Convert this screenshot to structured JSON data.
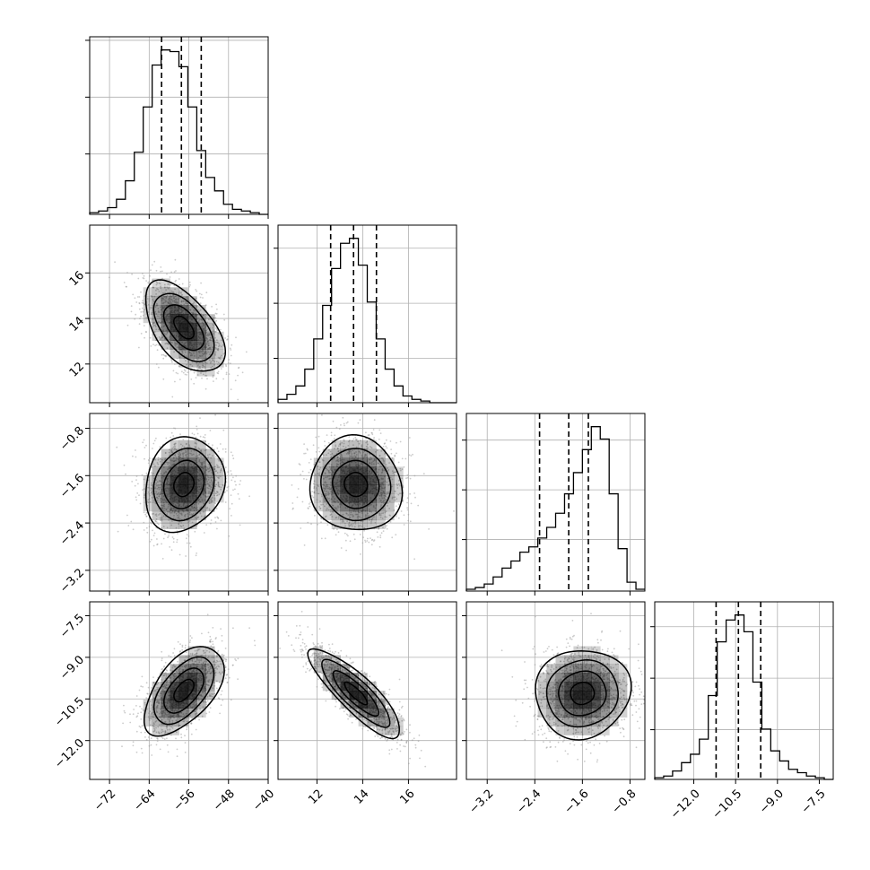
{
  "chart_data": {
    "type": "corner",
    "grid": true,
    "parameters": [
      {
        "mean": -57.5,
        "sd": 4.0,
        "quantiles": [
          -61.5,
          -57.5,
          -53.5
        ],
        "range": [
          -76,
          -40
        ],
        "ticks": [
          -72,
          -64,
          -56,
          -48,
          -40
        ],
        "tick_labels": [
          "−72",
          "−64",
          "−56",
          "−48",
          "−40"
        ]
      },
      {
        "mean": 13.6,
        "sd": 1.0,
        "quantiles": [
          12.6,
          13.6,
          14.6
        ],
        "range": [
          10.3,
          18.1
        ],
        "ticks": [
          12,
          14,
          16
        ],
        "tick_labels": [
          "12",
          "14",
          "16"
        ]
      },
      {
        "mean": -1.6,
        "sd": 0.4,
        "quantiles": [
          -2.32,
          -1.83,
          -1.5
        ],
        "range": [
          -3.55,
          -0.55
        ],
        "ticks": [
          -3.2,
          -2.4,
          -1.6,
          -0.8
        ],
        "tick_labels": [
          "−3.2",
          "−2.4",
          "−1.6",
          "−0.8"
        ]
      },
      {
        "mean": -10.4,
        "sd": 0.8,
        "quantiles": [
          -11.2,
          -10.4,
          -9.6
        ],
        "range": [
          -13.4,
          -7.0
        ],
        "ticks": [
          -12.0,
          -10.5,
          -9.0,
          -7.5
        ],
        "tick_labels": [
          "−12.0",
          "−10.5",
          "−9.0",
          "−7.5"
        ]
      }
    ],
    "histograms": [
      {
        "bin_start": -76,
        "bin_width": 1.8,
        "counts": [
          1,
          2,
          4,
          9,
          20,
          37,
          64,
          89,
          98,
          97,
          88,
          64,
          38,
          22,
          14,
          6,
          3,
          2,
          1,
          0
        ],
        "y_ticks": [
          0.34,
          0.66,
          0.98
        ]
      },
      {
        "bin_start": 10.3,
        "bin_width": 0.39,
        "counts": [
          2,
          5,
          10,
          20,
          38,
          58,
          80,
          95,
          98,
          82,
          60,
          38,
          20,
          10,
          4,
          2,
          1,
          0,
          0,
          0
        ],
        "y_ticks": [
          0.25,
          0.56,
          0.87
        ]
      },
      {
        "bin_start": -3.55,
        "bin_width": 0.15,
        "counts": [
          1,
          2,
          4,
          8,
          13,
          17,
          22,
          25,
          30,
          36,
          44,
          55,
          67,
          80,
          93,
          86,
          55,
          24,
          5,
          1
        ],
        "y_ticks": [
          0.29,
          0.57,
          0.85
        ]
      },
      {
        "bin_start": -13.4,
        "bin_width": 0.32,
        "counts": [
          1,
          2,
          5,
          10,
          15,
          24,
          50,
          82,
          95,
          98,
          88,
          58,
          30,
          17,
          11,
          6,
          4,
          2,
          1,
          0
        ],
        "y_ticks": [
          0.28,
          0.57,
          0.86
        ]
      }
    ],
    "pairs": [
      {
        "x": 0,
        "y": 1,
        "rho": -0.55,
        "center": [
          -57.0,
          13.6
        ]
      },
      {
        "x": 0,
        "y": 2,
        "rho": 0.15,
        "center": [
          -57.0,
          -1.75
        ]
      },
      {
        "x": 1,
        "y": 2,
        "rho": -0.05,
        "center": [
          13.7,
          -1.75
        ]
      },
      {
        "x": 0,
        "y": 3,
        "rho": 0.55,
        "center": [
          -57.0,
          -10.2
        ]
      },
      {
        "x": 1,
        "y": 3,
        "rho": -0.85,
        "center": [
          13.7,
          -10.3
        ]
      },
      {
        "x": 2,
        "y": 3,
        "rho": 0.05,
        "center": [
          -1.6,
          -10.3
        ]
      }
    ],
    "contour_levels_sigma": [
      0.5,
      1.0,
      1.5,
      2.0
    ],
    "xlabel": "",
    "ylabel": ""
  }
}
